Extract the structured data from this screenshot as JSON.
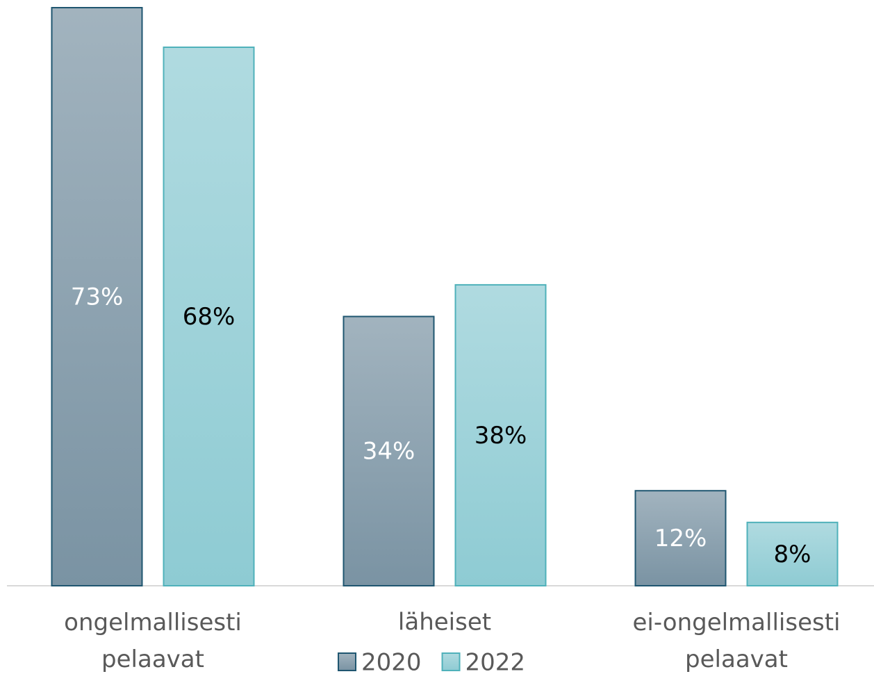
{
  "chart_data": {
    "type": "bar",
    "categories": [
      "ongelmallisesti pelaavat",
      "läheiset",
      "ei-ongelmallisesti pelaavat"
    ],
    "series": [
      {
        "name": "2020",
        "color": "#7a93a3",
        "border": "#1f5670",
        "label_color": "#ffffff",
        "values": [
          73,
          34,
          12
        ],
        "value_labels": [
          "73%",
          "34%",
          "12%"
        ]
      },
      {
        "name": "2022",
        "color": "#8ecbd3",
        "border": "#4fb1ba",
        "label_color": "#000000",
        "values": [
          68,
          38,
          8
        ],
        "value_labels": [
          "68%",
          "38%",
          "8%"
        ]
      }
    ],
    "legend": "bottom"
  }
}
